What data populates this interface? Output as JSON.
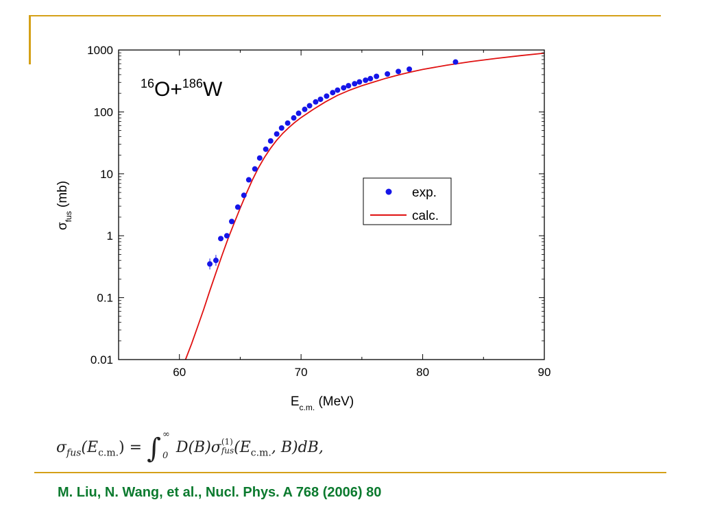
{
  "colors": {
    "accent_gold": "#D4A017",
    "citation_green": "#0B7A2E",
    "exp_color": "#1515E8",
    "calc_color": "#E01010"
  },
  "chart_data": {
    "type": "scatter",
    "title_parts": {
      "a_mass": "16",
      "a_sym": "O+",
      "b_mass": "186",
      "b_sym": "W"
    },
    "xlabel": {
      "main": "E",
      "sub": "c.m.",
      "unit": " (MeV)"
    },
    "ylabel": {
      "main": "σ",
      "sub": "fus",
      "unit": " (mb)"
    },
    "xlim": [
      55,
      90
    ],
    "ylim": [
      0.01,
      1000
    ],
    "yscale": "log",
    "xticks": [
      60,
      70,
      80,
      90
    ],
    "yticks": [
      0.01,
      0.1,
      1,
      10,
      100,
      1000
    ],
    "ytick_labels": [
      "0.01",
      "0.1",
      "1",
      "10",
      "100",
      "1000"
    ],
    "legend_position": "center-right",
    "series": [
      {
        "name": "exp.",
        "kind": "points",
        "x": [
          62.5,
          63.0,
          63.4,
          63.9,
          64.3,
          64.8,
          65.3,
          65.7,
          66.2,
          66.6,
          67.1,
          67.5,
          68.0,
          68.4,
          68.9,
          69.4,
          69.8,
          70.3,
          70.7,
          71.2,
          71.6,
          72.1,
          72.6,
          73.0,
          73.5,
          73.9,
          74.4,
          74.8,
          75.3,
          75.7,
          76.2,
          77.1,
          78.0,
          78.9,
          82.7
        ],
        "y": [
          0.35,
          0.4,
          0.9,
          1.0,
          1.7,
          2.9,
          4.5,
          8.0,
          12,
          18,
          25,
          34,
          44,
          55,
          66,
          80,
          95,
          110,
          126,
          145,
          160,
          180,
          205,
          225,
          245,
          265,
          285,
          305,
          325,
          345,
          375,
          410,
          450,
          490,
          640
        ]
      },
      {
        "name": "calc.",
        "kind": "line",
        "x": [
          60.5,
          61,
          61.5,
          62,
          62.5,
          63,
          63.5,
          64,
          64.5,
          65,
          65.5,
          66,
          66.5,
          67,
          67.5,
          68,
          68.5,
          69,
          69.5,
          70,
          71,
          72,
          73,
          74,
          75,
          76,
          77,
          78,
          79,
          80,
          82,
          84,
          86,
          88,
          90
        ],
        "y": [
          0.01,
          0.018,
          0.034,
          0.065,
          0.13,
          0.25,
          0.48,
          0.9,
          1.6,
          2.8,
          4.8,
          8,
          12.5,
          18.5,
          26,
          35,
          45,
          56,
          68,
          81,
          110,
          145,
          185,
          225,
          265,
          305,
          350,
          395,
          440,
          485,
          570,
          650,
          730,
          810,
          890
        ]
      }
    ]
  },
  "formula": {
    "lhs_sigma": "σ",
    "lhs_sub": "fus",
    "lhs_open": "(E",
    "lhs_sub2": "c.m.",
    "lhs_close": ") =",
    "integral": "∫",
    "upper": "∞",
    "lower": "0",
    "rhs_a": "D(B)σ",
    "rhs_sup": "(1)",
    "rhs_sub": "fus",
    "rhs_b": "(E",
    "rhs_sub2": "c.m.",
    "rhs_c": ", B)dB,"
  },
  "citation": "M. Liu, N. Wang, et al., Nucl. Phys. A 768 (2006) 80"
}
